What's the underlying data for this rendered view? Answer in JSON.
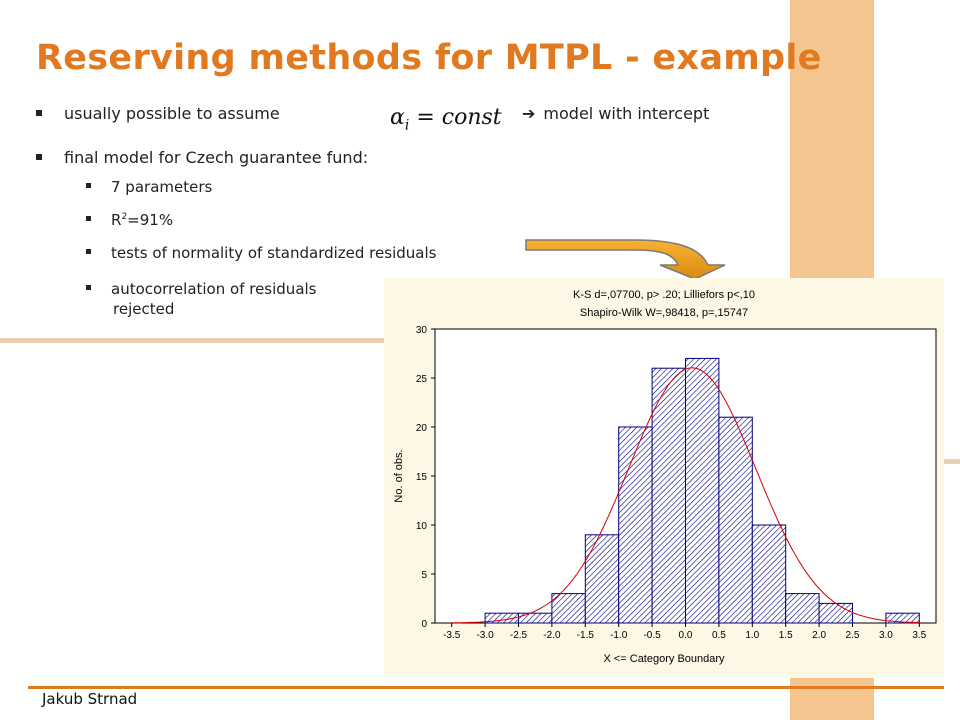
{
  "title": "Reserving methods for MTPL - example",
  "bullets": {
    "b1_text": "usually possible to assume",
    "b1_formula_main": "α",
    "b1_formula_sub": "i",
    "b1_formula_rest": " = const",
    "b1_arrow": "➔",
    "b1_tail": "model with intercept",
    "b2_text": "final model for Czech guarantee fund:",
    "sub1": "7 parameters",
    "sub2_base": "R",
    "sub2_sup": "2",
    "sub2_tail": "=91%",
    "sub3": "tests of normality of standardized residuals",
    "sub4_line1": "autocorrelation of residuals",
    "sub4_line2": "rejected"
  },
  "footer": {
    "author": "Jakub Strnad"
  },
  "colors": {
    "accent": "#e0791f",
    "stripe": "#f5c58f",
    "bar_stroke": "#00007f",
    "curve": "#d40000",
    "panel": "#fdf7e6"
  },
  "chart_data": {
    "type": "bar",
    "title_line1": "K-S d=,07700, p> .20; Lilliefors p<,10",
    "title_line2": "Shapiro-Wilk W=,98418, p=,15747",
    "xlabel": "X <= Category Boundary",
    "ylabel": "No. of obs.",
    "x_ticks": [
      "-3.5",
      "-3.0",
      "-2.5",
      "-2.0",
      "-1.5",
      "-1.0",
      "-0.5",
      "0.0",
      "0.5",
      "1.0",
      "1.5",
      "2.0",
      "2.5",
      "3.0",
      "3.5"
    ],
    "y_ticks": [
      "0",
      "5",
      "10",
      "15",
      "20",
      "25",
      "30"
    ],
    "ylim": [
      0,
      30
    ],
    "xlim": [
      -3.5,
      3.5
    ],
    "bins": [
      {
        "lo": -3.5,
        "hi": -3.0,
        "count": 0
      },
      {
        "lo": -3.0,
        "hi": -2.5,
        "count": 1
      },
      {
        "lo": -2.5,
        "hi": -2.0,
        "count": 1
      },
      {
        "lo": -2.0,
        "hi": -1.5,
        "count": 3
      },
      {
        "lo": -1.5,
        "hi": -1.0,
        "count": 9
      },
      {
        "lo": -1.0,
        "hi": -0.5,
        "count": 20
      },
      {
        "lo": -0.5,
        "hi": 0.0,
        "count": 26
      },
      {
        "lo": 0.0,
        "hi": 0.5,
        "count": 27
      },
      {
        "lo": 0.5,
        "hi": 1.0,
        "count": 21
      },
      {
        "lo": 1.0,
        "hi": 1.5,
        "count": 10
      },
      {
        "lo": 1.5,
        "hi": 2.0,
        "count": 3
      },
      {
        "lo": 2.0,
        "hi": 2.5,
        "count": 2
      },
      {
        "lo": 2.5,
        "hi": 3.0,
        "count": 0
      },
      {
        "lo": 3.0,
        "hi": 3.5,
        "count": 1
      }
    ],
    "curve": {
      "type": "normal-fit",
      "mean": 0.1,
      "sd": 0.95,
      "n": 124,
      "bin_width": 0.5
    },
    "grid": false
  }
}
